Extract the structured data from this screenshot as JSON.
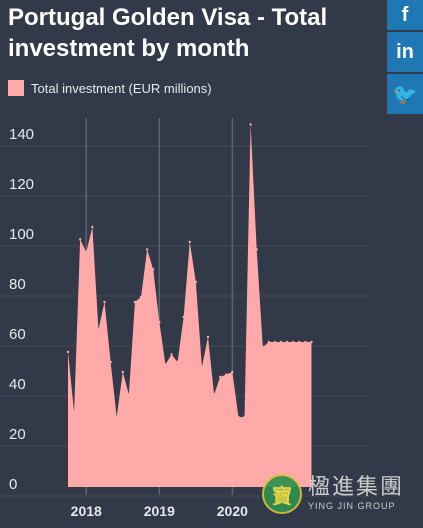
{
  "title": "Portugal Golden Visa - Total investment by month",
  "social": {
    "facebook": "f",
    "linkedin": "in",
    "twitter": "🐦"
  },
  "watermark": {
    "text_cn": "楹進集團",
    "text_en": "YING JIN GROUP"
  },
  "colors": {
    "background": "#323a49",
    "area": "#ffa9a9",
    "grid": "#5b6374",
    "text": "#e6e8ee"
  },
  "chart_data": {
    "type": "area",
    "title": "Portugal Golden Visa - Total investment by month",
    "series": [
      {
        "name": "Total investment (EUR millions)",
        "color": "#ffa9a9",
        "x": [
          "2017-10",
          "2017-11",
          "2017-12",
          "2018-01",
          "2018-02",
          "2018-03",
          "2018-04",
          "2018-05",
          "2018-06",
          "2018-07",
          "2018-08",
          "2018-09",
          "2018-10",
          "2018-11",
          "2018-12",
          "2019-01",
          "2019-02",
          "2019-03",
          "2019-04",
          "2019-05",
          "2019-06",
          "2019-07",
          "2019-08",
          "2019-09",
          "2019-10",
          "2019-11",
          "2019-12",
          "2020-01",
          "2020-02",
          "2020-03",
          "2020-04",
          "2020-05",
          "2020-06",
          "2020-07",
          "2020-08",
          "2020-09",
          "2020-10",
          "2020-11",
          "2020-12",
          "2021-01",
          "2021-02"
        ],
        "values": [
          54,
          30,
          99,
          94,
          104,
          63,
          74,
          50,
          28,
          46,
          37,
          74,
          76,
          95,
          87,
          66,
          49,
          53,
          50,
          68,
          98,
          82,
          48,
          60,
          37,
          44,
          45,
          46,
          28,
          28,
          145,
          95,
          56,
          58,
          58,
          58,
          58,
          58,
          58,
          58,
          58
        ]
      }
    ],
    "xticks": [
      "2018",
      "2019",
      "2020"
    ],
    "ytick_values": [
      0,
      20,
      40,
      60,
      80,
      100,
      120,
      140
    ],
    "ylim": [
      0,
      150
    ],
    "grid": true,
    "legend": "top-left"
  }
}
